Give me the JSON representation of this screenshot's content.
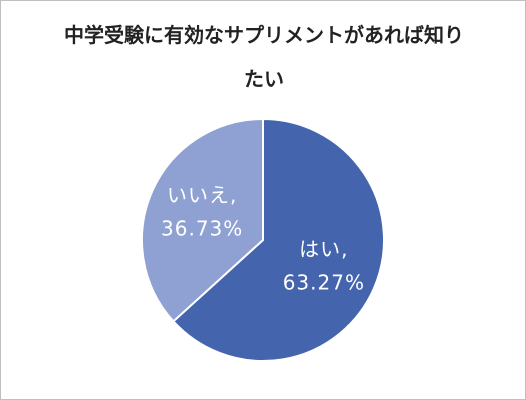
{
  "chart_data": {
    "type": "pie",
    "title": "中学受験に有効なサプリメントがあれば知りたい",
    "categories": [
      "はい",
      "いいえ"
    ],
    "values": [
      63.27,
      36.73
    ],
    "value_labels": [
      "63.27%",
      "36.73%"
    ],
    "label_separator": ",",
    "colors": [
      "#4464ad",
      "#8fa1d3"
    ],
    "start_angle": 0,
    "direction": "clockwise"
  }
}
